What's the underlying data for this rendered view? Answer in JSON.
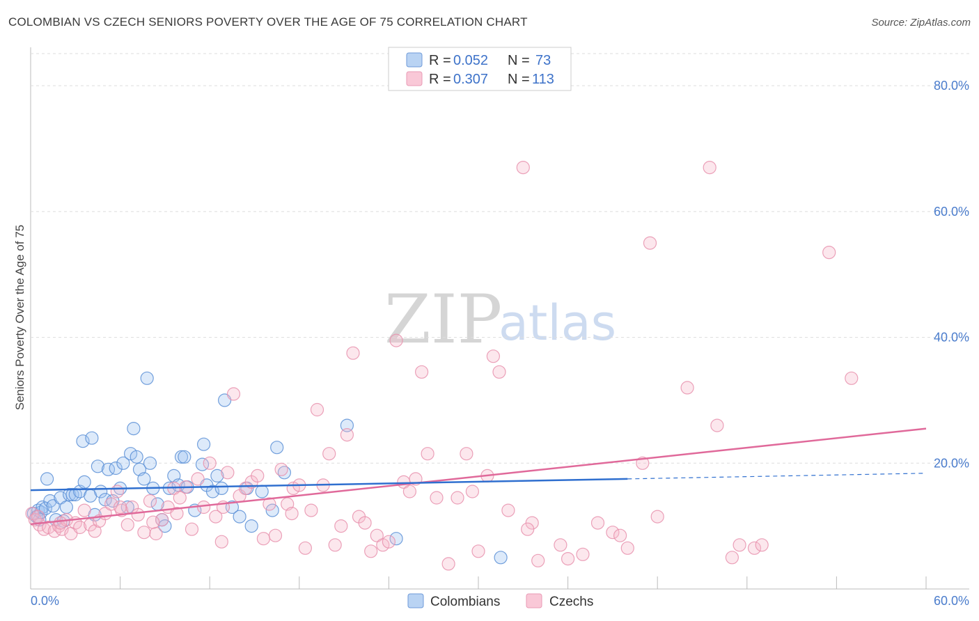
{
  "header": {
    "title": "COLOMBIAN VS CZECH SENIORS POVERTY OVER THE AGE OF 75 CORRELATION CHART",
    "source": "Source: ZipAtlas.com"
  },
  "watermark": {
    "zip": "ZIP",
    "atlas": "atlas"
  },
  "legend_top": [
    {
      "r_label": "R =",
      "r_value": "0.052",
      "n_label": "N =",
      "n_value": "73"
    },
    {
      "r_label": "R =",
      "r_value": "0.307",
      "n_label": "N =",
      "n_value": "113"
    }
  ],
  "legend_bottom": [
    {
      "label": "Colombians"
    },
    {
      "label": "Czechs"
    }
  ],
  "colors": {
    "colombians_fill": "#9fc3f0",
    "colombians_stroke": "#5b8fd6",
    "colombians_line": "#2f6fcf",
    "czechs_fill": "#f6b9cc",
    "czechs_stroke": "#e890ad",
    "czechs_line": "#e0699a",
    "tick_text": "#4a7ccc",
    "grid": "#dddddd"
  },
  "chart_data": {
    "type": "scatter",
    "title": "COLOMBIAN VS CZECH SENIORS POVERTY OVER THE AGE OF 75 CORRELATION CHART",
    "xlabel": "",
    "ylabel": "Seniors Poverty Over the Age of 75",
    "xlim": [
      0,
      60
    ],
    "ylim": [
      0,
      85
    ],
    "x_tick_labels": [
      "0.0%",
      "60.0%"
    ],
    "y_ticks": [
      20,
      40,
      60,
      80
    ],
    "y_tick_labels": [
      "20.0%",
      "40.0%",
      "60.0%",
      "80.0%"
    ],
    "grid": true,
    "legend_position": "top-center",
    "series": [
      {
        "name": "Colombians",
        "r": 0.052,
        "n": 73,
        "trend": {
          "x": [
            0,
            40
          ],
          "y": [
            15.7,
            17.5
          ],
          "dashed_extension_to_x": 60,
          "dashed_end_y": 18.4
        },
        "points": [
          [
            0.2,
            12.0
          ],
          [
            0.4,
            11.5
          ],
          [
            0.5,
            12.5
          ],
          [
            0.6,
            11.0
          ],
          [
            0.7,
            12.2
          ],
          [
            0.8,
            13.0
          ],
          [
            1.0,
            12.8
          ],
          [
            1.1,
            17.5
          ],
          [
            1.3,
            14.0
          ],
          [
            1.5,
            13.2
          ],
          [
            1.7,
            11.0
          ],
          [
            2.0,
            14.5
          ],
          [
            2.2,
            10.8
          ],
          [
            2.4,
            13.0
          ],
          [
            2.6,
            15.0
          ],
          [
            2.8,
            15.0
          ],
          [
            3.0,
            15.0
          ],
          [
            3.3,
            15.5
          ],
          [
            3.5,
            23.5
          ],
          [
            3.6,
            17.0
          ],
          [
            4.0,
            14.8
          ],
          [
            4.1,
            24.0
          ],
          [
            4.3,
            11.8
          ],
          [
            4.5,
            19.5
          ],
          [
            4.7,
            15.5
          ],
          [
            5.0,
            14.2
          ],
          [
            5.2,
            19.0
          ],
          [
            5.5,
            14.0
          ],
          [
            5.7,
            19.2
          ],
          [
            6.0,
            16.0
          ],
          [
            6.2,
            20.0
          ],
          [
            6.5,
            13.0
          ],
          [
            6.7,
            21.5
          ],
          [
            6.9,
            25.5
          ],
          [
            7.1,
            21.0
          ],
          [
            7.3,
            19.0
          ],
          [
            7.6,
            17.5
          ],
          [
            7.8,
            33.5
          ],
          [
            8.0,
            20.0
          ],
          [
            8.2,
            16.0
          ],
          [
            8.5,
            13.5
          ],
          [
            8.8,
            11.0
          ],
          [
            9.0,
            10.0
          ],
          [
            9.3,
            16.0
          ],
          [
            9.6,
            18.0
          ],
          [
            9.9,
            16.5
          ],
          [
            10.1,
            21.0
          ],
          [
            10.3,
            21.0
          ],
          [
            10.5,
            16.2
          ],
          [
            11.0,
            12.5
          ],
          [
            11.5,
            19.8
          ],
          [
            11.6,
            23.0
          ],
          [
            11.8,
            16.5
          ],
          [
            12.2,
            15.5
          ],
          [
            12.5,
            18.0
          ],
          [
            12.8,
            16.0
          ],
          [
            13.0,
            30.0
          ],
          [
            13.5,
            13.0
          ],
          [
            14.0,
            11.5
          ],
          [
            14.5,
            16.0
          ],
          [
            14.8,
            10.0
          ],
          [
            15.5,
            15.5
          ],
          [
            16.2,
            12.5
          ],
          [
            16.5,
            22.5
          ],
          [
            17.0,
            18.5
          ],
          [
            21.2,
            26.0
          ],
          [
            24.5,
            8.0
          ],
          [
            31.5,
            5.0
          ]
        ]
      },
      {
        "name": "Czechs",
        "r": 0.307,
        "n": 113,
        "trend": {
          "x": [
            0,
            60
          ],
          "y": [
            10.3,
            25.5
          ]
        },
        "points": [
          [
            0.1,
            12.0
          ],
          [
            0.3,
            11.0
          ],
          [
            0.6,
            10.2
          ],
          [
            0.9,
            9.5
          ],
          [
            1.2,
            9.8
          ],
          [
            1.6,
            9.2
          ],
          [
            1.9,
            10.0
          ],
          [
            2.1,
            9.5
          ],
          [
            2.4,
            11.0
          ],
          [
            2.7,
            8.8
          ],
          [
            3.0,
            10.5
          ],
          [
            3.3,
            9.8
          ],
          [
            3.6,
            12.5
          ],
          [
            4.0,
            10.2
          ],
          [
            4.3,
            9.2
          ],
          [
            4.6,
            10.8
          ],
          [
            5.0,
            12.0
          ],
          [
            5.4,
            13.5
          ],
          [
            5.8,
            15.5
          ],
          [
            6.1,
            12.5
          ],
          [
            6.5,
            10.2
          ],
          [
            6.8,
            13.0
          ],
          [
            7.2,
            11.8
          ],
          [
            7.6,
            9.0
          ],
          [
            8.0,
            14.0
          ],
          [
            8.4,
            8.8
          ],
          [
            8.8,
            11.0
          ],
          [
            9.2,
            13.0
          ],
          [
            9.6,
            16.0
          ],
          [
            10.0,
            14.5
          ],
          [
            10.4,
            16.2
          ],
          [
            10.8,
            9.5
          ],
          [
            11.2,
            17.5
          ],
          [
            11.6,
            13.0
          ],
          [
            12.0,
            20.0
          ],
          [
            12.4,
            11.5
          ],
          [
            12.8,
            7.5
          ],
          [
            13.2,
            18.5
          ],
          [
            13.6,
            31.0
          ],
          [
            14.0,
            14.8
          ],
          [
            14.4,
            16.0
          ],
          [
            14.8,
            17.0
          ],
          [
            15.2,
            18.0
          ],
          [
            15.6,
            8.0
          ],
          [
            16.0,
            13.5
          ],
          [
            16.4,
            8.5
          ],
          [
            16.8,
            19.0
          ],
          [
            17.2,
            13.5
          ],
          [
            17.6,
            16.0
          ],
          [
            18.0,
            16.5
          ],
          [
            18.4,
            6.5
          ],
          [
            18.8,
            12.5
          ],
          [
            19.2,
            28.5
          ],
          [
            19.6,
            16.5
          ],
          [
            20.0,
            21.5
          ],
          [
            20.4,
            7.0
          ],
          [
            20.8,
            10.0
          ],
          [
            21.2,
            24.5
          ],
          [
            21.6,
            37.5
          ],
          [
            22.0,
            11.5
          ],
          [
            22.4,
            10.5
          ],
          [
            22.8,
            6.0
          ],
          [
            23.2,
            8.5
          ],
          [
            23.6,
            7.0
          ],
          [
            24.0,
            7.5
          ],
          [
            24.5,
            39.5
          ],
          [
            25.0,
            17.0
          ],
          [
            25.4,
            15.5
          ],
          [
            25.8,
            17.5
          ],
          [
            26.2,
            34.5
          ],
          [
            26.6,
            21.5
          ],
          [
            27.2,
            14.5
          ],
          [
            28.0,
            4.0
          ],
          [
            28.6,
            14.5
          ],
          [
            29.2,
            21.5
          ],
          [
            29.6,
            15.5
          ],
          [
            30.0,
            6.0
          ],
          [
            30.6,
            18.0
          ],
          [
            31.0,
            37.0
          ],
          [
            31.4,
            34.5
          ],
          [
            32.0,
            12.5
          ],
          [
            33.0,
            67.0
          ],
          [
            33.6,
            10.5
          ],
          [
            34.0,
            4.5
          ],
          [
            35.5,
            7.0
          ],
          [
            36.0,
            4.8
          ],
          [
            37.0,
            5.5
          ],
          [
            38.0,
            10.5
          ],
          [
            39.0,
            9.0
          ],
          [
            39.5,
            8.5
          ],
          [
            40.0,
            6.5
          ],
          [
            41.0,
            20.0
          ],
          [
            41.5,
            55.0
          ],
          [
            42.0,
            11.5
          ],
          [
            44.0,
            32.0
          ],
          [
            45.5,
            67.0
          ],
          [
            46.0,
            26.0
          ],
          [
            47.0,
            5.0
          ],
          [
            47.5,
            7.0
          ],
          [
            48.5,
            6.5
          ],
          [
            49.0,
            7.0
          ],
          [
            53.5,
            53.5
          ],
          [
            55.0,
            33.5
          ],
          [
            33.3,
            9.5
          ],
          [
            6.0,
            13.0
          ],
          [
            2.0,
            10.5
          ],
          [
            17.5,
            12.0
          ],
          [
            12.9,
            13.0
          ],
          [
            8.2,
            10.6
          ],
          [
            9.8,
            12.0
          ],
          [
            0.5,
            11.5
          ]
        ]
      }
    ]
  }
}
